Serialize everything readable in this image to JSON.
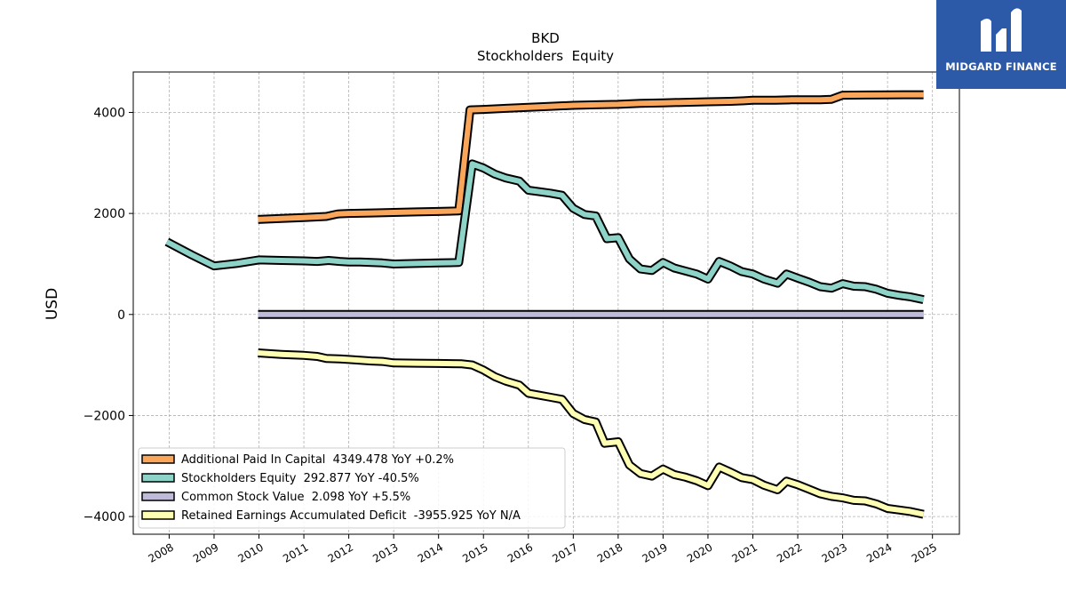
{
  "chart_data": {
    "type": "line",
    "title": "BKD",
    "subtitle": "Stockholders  Equity",
    "ylabel": "USD",
    "xlabel": "",
    "ylim": [
      -4350,
      4800
    ],
    "xlim": [
      2007.2,
      2025.6
    ],
    "grid": true,
    "legend_position": "lower-left",
    "yticks": [
      4000,
      2000,
      0,
      -2000,
      -4000
    ],
    "ytick_labels": [
      "4000",
      "2000",
      "0",
      "−2000",
      "−4000"
    ],
    "xticks": [
      2008,
      2009,
      2010,
      2011,
      2012,
      2013,
      2014,
      2015,
      2016,
      2017,
      2018,
      2019,
      2020,
      2021,
      2022,
      2023,
      2024,
      2025
    ],
    "xtick_labels": [
      "2008",
      "2009",
      "2010",
      "2011",
      "2012",
      "2013",
      "2014",
      "2015",
      "2016",
      "2017",
      "2018",
      "2019",
      "2020",
      "2021",
      "2022",
      "2023",
      "2024",
      "2025"
    ],
    "series": [
      {
        "name": "Additional Paid In Capital  4349.478 YoY +0.2%",
        "color": "#f9a65a",
        "points": [
          [
            2009.98,
            1880
          ],
          [
            2010.5,
            1900
          ],
          [
            2011.0,
            1920
          ],
          [
            2011.5,
            1940
          ],
          [
            2011.75,
            1990
          ],
          [
            2012.0,
            2000
          ],
          [
            2012.5,
            2010
          ],
          [
            2013.0,
            2020
          ],
          [
            2013.5,
            2030
          ],
          [
            2014.0,
            2040
          ],
          [
            2014.45,
            2050
          ],
          [
            2014.7,
            4050
          ],
          [
            2015.0,
            4060
          ],
          [
            2015.5,
            4080
          ],
          [
            2016.0,
            4100
          ],
          [
            2016.5,
            4120
          ],
          [
            2017.0,
            4140
          ],
          [
            2017.5,
            4150
          ],
          [
            2018.0,
            4160
          ],
          [
            2018.5,
            4180
          ],
          [
            2019.0,
            4190
          ],
          [
            2019.5,
            4200
          ],
          [
            2020.0,
            4210
          ],
          [
            2020.5,
            4220
          ],
          [
            2020.8,
            4230
          ],
          [
            2021.0,
            4240
          ],
          [
            2021.5,
            4240
          ],
          [
            2021.85,
            4250
          ],
          [
            2022.0,
            4250
          ],
          [
            2022.5,
            4250
          ],
          [
            2022.75,
            4260
          ],
          [
            2023.0,
            4340
          ],
          [
            2023.5,
            4345
          ],
          [
            2024.0,
            4348
          ],
          [
            2024.8,
            4349.478
          ]
        ]
      },
      {
        "name": "Stockholders Equity  292.877 YoY -40.5%",
        "color": "#8dd3c7",
        "points": [
          [
            2007.95,
            1440
          ],
          [
            2008.5,
            1180
          ],
          [
            2009.0,
            960
          ],
          [
            2009.5,
            1010
          ],
          [
            2010.0,
            1080
          ],
          [
            2010.5,
            1070
          ],
          [
            2011.0,
            1060
          ],
          [
            2011.3,
            1050
          ],
          [
            2011.55,
            1070
          ],
          [
            2011.8,
            1050
          ],
          [
            2012.0,
            1040
          ],
          [
            2012.25,
            1040
          ],
          [
            2012.5,
            1030
          ],
          [
            2012.75,
            1020
          ],
          [
            2013.0,
            1000
          ],
          [
            2013.5,
            1010
          ],
          [
            2014.0,
            1020
          ],
          [
            2014.45,
            1030
          ],
          [
            2014.75,
            2980
          ],
          [
            2015.0,
            2900
          ],
          [
            2015.25,
            2780
          ],
          [
            2015.5,
            2700
          ],
          [
            2015.8,
            2640
          ],
          [
            2016.0,
            2460
          ],
          [
            2016.25,
            2430
          ],
          [
            2016.5,
            2400
          ],
          [
            2016.75,
            2360
          ],
          [
            2017.0,
            2100
          ],
          [
            2017.25,
            1980
          ],
          [
            2017.5,
            1950
          ],
          [
            2017.75,
            1500
          ],
          [
            2018.0,
            1520
          ],
          [
            2018.25,
            1100
          ],
          [
            2018.5,
            900
          ],
          [
            2018.75,
            870
          ],
          [
            2019.0,
            1030
          ],
          [
            2019.25,
            920
          ],
          [
            2019.5,
            860
          ],
          [
            2019.75,
            800
          ],
          [
            2020.0,
            700
          ],
          [
            2020.25,
            1050
          ],
          [
            2020.5,
            960
          ],
          [
            2020.75,
            850
          ],
          [
            2021.0,
            800
          ],
          [
            2021.25,
            700
          ],
          [
            2021.55,
            620
          ],
          [
            2021.75,
            800
          ],
          [
            2022.0,
            720
          ],
          [
            2022.25,
            640
          ],
          [
            2022.5,
            550
          ],
          [
            2022.75,
            520
          ],
          [
            2023.0,
            610
          ],
          [
            2023.25,
            560
          ],
          [
            2023.5,
            550
          ],
          [
            2023.75,
            500
          ],
          [
            2024.0,
            420
          ],
          [
            2024.25,
            380
          ],
          [
            2024.5,
            350
          ],
          [
            2024.8,
            292.877
          ]
        ]
      },
      {
        "name": "Common Stock Value  2.098 YoY +5.5%",
        "color": "#bebada",
        "points": [
          [
            2009.98,
            1.5
          ],
          [
            2015.0,
            1.6
          ],
          [
            2020.0,
            1.8
          ],
          [
            2024.8,
            2.098
          ]
        ]
      },
      {
        "name": "Retained Earnings Accumulated Deficit  -3955.925 YoY N/A",
        "color": "#ffffb3",
        "points": [
          [
            2009.98,
            -760
          ],
          [
            2010.5,
            -790
          ],
          [
            2011.0,
            -810
          ],
          [
            2011.3,
            -830
          ],
          [
            2011.5,
            -870
          ],
          [
            2011.8,
            -880
          ],
          [
            2012.0,
            -890
          ],
          [
            2012.5,
            -920
          ],
          [
            2012.75,
            -930
          ],
          [
            2013.0,
            -960
          ],
          [
            2013.5,
            -965
          ],
          [
            2014.0,
            -970
          ],
          [
            2014.5,
            -975
          ],
          [
            2014.75,
            -1000
          ],
          [
            2015.0,
            -1100
          ],
          [
            2015.25,
            -1230
          ],
          [
            2015.5,
            -1320
          ],
          [
            2015.8,
            -1400
          ],
          [
            2016.0,
            -1560
          ],
          [
            2016.25,
            -1600
          ],
          [
            2016.5,
            -1640
          ],
          [
            2016.75,
            -1680
          ],
          [
            2017.0,
            -1960
          ],
          [
            2017.25,
            -2080
          ],
          [
            2017.5,
            -2130
          ],
          [
            2017.7,
            -2550
          ],
          [
            2018.0,
            -2520
          ],
          [
            2018.25,
            -2980
          ],
          [
            2018.5,
            -3150
          ],
          [
            2018.75,
            -3200
          ],
          [
            2019.0,
            -3060
          ],
          [
            2019.25,
            -3170
          ],
          [
            2019.5,
            -3220
          ],
          [
            2019.75,
            -3290
          ],
          [
            2020.0,
            -3390
          ],
          [
            2020.25,
            -3020
          ],
          [
            2020.5,
            -3120
          ],
          [
            2020.75,
            -3230
          ],
          [
            2021.0,
            -3270
          ],
          [
            2021.25,
            -3380
          ],
          [
            2021.55,
            -3470
          ],
          [
            2021.75,
            -3300
          ],
          [
            2022.0,
            -3370
          ],
          [
            2022.25,
            -3460
          ],
          [
            2022.5,
            -3550
          ],
          [
            2022.75,
            -3600
          ],
          [
            2023.0,
            -3630
          ],
          [
            2023.25,
            -3680
          ],
          [
            2023.5,
            -3690
          ],
          [
            2023.75,
            -3750
          ],
          [
            2024.0,
            -3840
          ],
          [
            2024.25,
            -3870
          ],
          [
            2024.5,
            -3900
          ],
          [
            2024.8,
            -3955.925
          ]
        ]
      }
    ]
  },
  "logo": {
    "text": "MIDGARD FINANCE",
    "color": "#2c5aa8"
  }
}
